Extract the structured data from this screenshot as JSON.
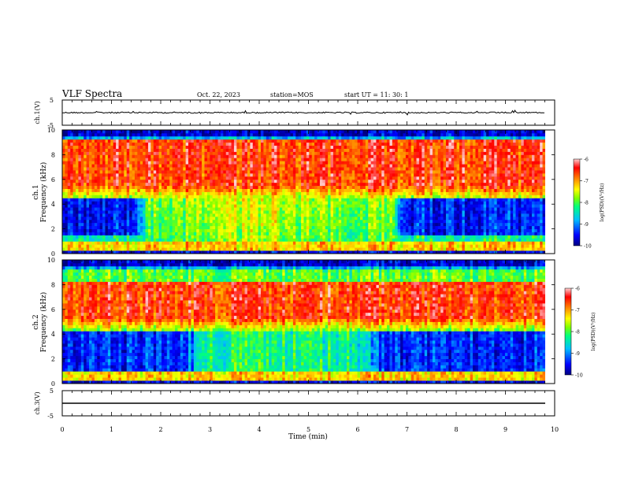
{
  "header": {
    "title": "VLF Spectra",
    "date": "Oct. 22, 2023",
    "station": "station=MOS",
    "start": "start  UT =   11: 30: 1"
  },
  "colors": {
    "colormap": [
      "#00007f",
      "#0000ff",
      "#00bfff",
      "#00ff7f",
      "#7fff00",
      "#ffff00",
      "#ff7f00",
      "#ff0000",
      "#ffd0d0"
    ]
  },
  "chart_data": [
    {
      "type": "line",
      "ylabel": "ch.1(V)",
      "ylim": [
        -5,
        5
      ],
      "yticks": [
        "5",
        "-5"
      ],
      "note": "waveform around zero"
    },
    {
      "type": "heatmap",
      "ylabel_line1": "ch.1",
      "ylabel_line2": "Frequency (kHz)",
      "ylim": [
        0,
        10
      ],
      "yticks": [
        "0",
        "2",
        "4",
        "6",
        "8",
        "10"
      ],
      "colorbar": {
        "label": "log(PSD)(V²/Hz)",
        "range": [
          -10,
          -6
        ],
        "ticks": [
          "-6",
          "-7",
          "-8",
          "-9",
          "-10"
        ]
      }
    },
    {
      "type": "heatmap",
      "ylabel_line1": "ch.2",
      "ylabel_line2": "Frequency (kHz)",
      "ylim": [
        0,
        10
      ],
      "yticks": [
        "0",
        "2",
        "4",
        "6",
        "8",
        "10"
      ],
      "colorbar": {
        "label": "log(PSD)(V²/Hz)",
        "range": [
          -10,
          -6
        ],
        "ticks": [
          "-6",
          "-7",
          "-8",
          "-9",
          "-10"
        ]
      }
    },
    {
      "type": "line",
      "ylabel": "ch.3(V)",
      "ylim": [
        -5,
        5
      ],
      "yticks": [
        "5",
        "-5"
      ],
      "xlabel": "Time (min)",
      "xlim": [
        0,
        10
      ],
      "xticks": [
        "0",
        "1",
        "2",
        "3",
        "4",
        "5",
        "6",
        "7",
        "8",
        "9",
        "10"
      ]
    }
  ]
}
